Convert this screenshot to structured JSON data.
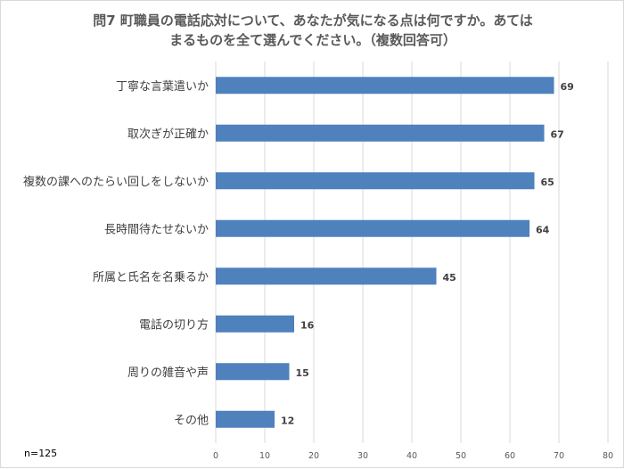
{
  "chart_data": {
    "type": "bar",
    "orientation": "horizontal",
    "title_lines": [
      "問7 町職員の電話応対について、あなたが気になる点は何ですか。あては",
      "まるものを全て選んでください。（複数回答可）"
    ],
    "categories": [
      "丁寧な言葉遣いか",
      "取次ぎが正確か",
      "複数の課へのたらい回しをしないか",
      "長時間待たせないか",
      "所属と氏名を名乗るか",
      "電話の切り方",
      "周りの雑音や声",
      "その他"
    ],
    "values": [
      69,
      67,
      65,
      64,
      45,
      16,
      15,
      12
    ],
    "data_labels": [
      "69",
      "67",
      "65",
      "64",
      "45",
      "16",
      "15",
      "12"
    ],
    "x_ticks": [
      "0",
      "10",
      "20",
      "30",
      "40",
      "50",
      "60",
      "70",
      "80"
    ],
    "xlim": [
      0,
      80
    ],
    "xlabel": "",
    "ylabel": "",
    "grid": true,
    "bar_color": "#4f81bd",
    "note": "n=125"
  }
}
